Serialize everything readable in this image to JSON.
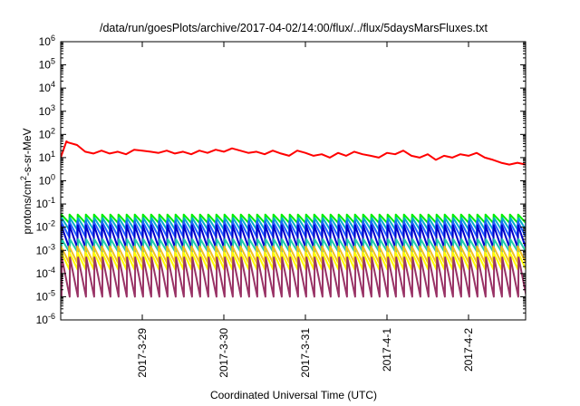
{
  "chart_data": {
    "type": "line",
    "title": "/data/run/goesPlots/archive/2017-04-02/14:00/flux/../flux/5daysMarsFluxes.txt",
    "xlabel": "Coordinated Universal Time (UTC)",
    "ylabel_parts": {
      "before": "protons/cm",
      "sup": "2",
      "after": "-s-sr-MeV"
    },
    "y_scale": "log",
    "ylim": [
      1e-06,
      1000000.0
    ],
    "y_ticks": [
      {
        "value": 1e-06,
        "base": "10",
        "exp": "-6"
      },
      {
        "value": 1e-05,
        "base": "10",
        "exp": "-5"
      },
      {
        "value": 0.0001,
        "base": "10",
        "exp": "-4"
      },
      {
        "value": 0.001,
        "base": "10",
        "exp": "-3"
      },
      {
        "value": 0.01,
        "base": "10",
        "exp": "-2"
      },
      {
        "value": 0.1,
        "base": "10",
        "exp": "-1"
      },
      {
        "value": 1.0,
        "base": "10",
        "exp": "0"
      },
      {
        "value": 10.0,
        "base": "10",
        "exp": "1"
      },
      {
        "value": 100.0,
        "base": "10",
        "exp": "2"
      },
      {
        "value": 1000.0,
        "base": "10",
        "exp": "3"
      },
      {
        "value": 10000.0,
        "base": "10",
        "exp": "4"
      },
      {
        "value": 100000.0,
        "base": "10",
        "exp": "5"
      },
      {
        "value": 1000000.0,
        "base": "10",
        "exp": "6"
      }
    ],
    "x_units": "days",
    "xlim": [
      0,
      5.7
    ],
    "x_ticks": [
      {
        "value": 1.0,
        "label": "2017-3-29"
      },
      {
        "value": 2.0,
        "label": "2017-3-30"
      },
      {
        "value": 3.0,
        "label": "2017-3-31"
      },
      {
        "value": 4.0,
        "label": "2017-4-1"
      },
      {
        "value": 5.0,
        "label": "2017-4-2"
      }
    ],
    "grid": false,
    "legend": "none",
    "series": [
      {
        "color": "#ff0000",
        "style": "sawtooth",
        "x": [
          0.0,
          0.07,
          0.09,
          0.2,
          0.3,
          0.4,
          0.5,
          0.6,
          0.7,
          0.8,
          0.9,
          1.0,
          1.1,
          1.2,
          1.3,
          1.4,
          1.5,
          1.6,
          1.7,
          1.8,
          1.9,
          2.0,
          2.1,
          2.2,
          2.3,
          2.4,
          2.5,
          2.6,
          2.7,
          2.8,
          2.9,
          3.0,
          3.1,
          3.2,
          3.3,
          3.4,
          3.5,
          3.6,
          3.7,
          3.8,
          3.9,
          4.0,
          4.1,
          4.2,
          4.3,
          4.4,
          4.5,
          4.6,
          4.7,
          4.8,
          4.9,
          5.0,
          5.1,
          5.2,
          5.3,
          5.4,
          5.5,
          5.6,
          5.7
        ],
        "y": [
          10,
          50,
          45,
          35,
          18,
          15,
          20,
          15,
          18,
          14,
          22,
          20,
          18,
          16,
          20,
          15,
          18,
          14,
          20,
          16,
          22,
          18,
          25,
          20,
          16,
          18,
          14,
          20,
          15,
          12,
          20,
          16,
          12,
          14,
          10,
          16,
          12,
          18,
          14,
          12,
          10,
          16,
          14,
          20,
          12,
          10,
          14,
          8,
          12,
          10,
          14,
          12,
          16,
          10,
          8,
          6,
          5,
          6,
          5
        ],
        "hourly": [
          {
            "from": 0.0,
            "to": 0.07,
            "rising": true
          },
          {
            "from": 0.09,
            "to": 0.2,
            "rising": false
          }
        ]
      },
      {
        "color": "#00ee00",
        "style": "sawtooth",
        "period_days": 0.1,
        "peak": 0.035,
        "trough": 0.015
      },
      {
        "color": "#00aacc",
        "style": "sawtooth",
        "period_days": 0.1,
        "peak": 0.025,
        "trough": 0.007
      },
      {
        "color": "#2060ff",
        "style": "sawtooth",
        "period_days": 0.1,
        "peak": 0.018,
        "trough": 0.004
      },
      {
        "color": "#0000cc",
        "style": "sawtooth",
        "period_days": 0.1,
        "peak": 0.012,
        "trough": 0.0012
      },
      {
        "color": "#22ccaa",
        "style": "sawtooth",
        "period_days": 0.1,
        "peak": 0.003,
        "trough": 0.0008
      },
      {
        "color": "#f0c020",
        "style": "sawtooth",
        "period_days": 0.1,
        "peak": 0.0015,
        "trough": 0.0003
      },
      {
        "color": "#ffff00",
        "style": "sawtooth",
        "period_days": 0.1,
        "peak": 0.0008,
        "trough": 0.00015
      },
      {
        "color": "#993366",
        "style": "sawtooth",
        "period_days": 0.1,
        "peak": 0.0005,
        "trough": 1e-05
      }
    ]
  }
}
